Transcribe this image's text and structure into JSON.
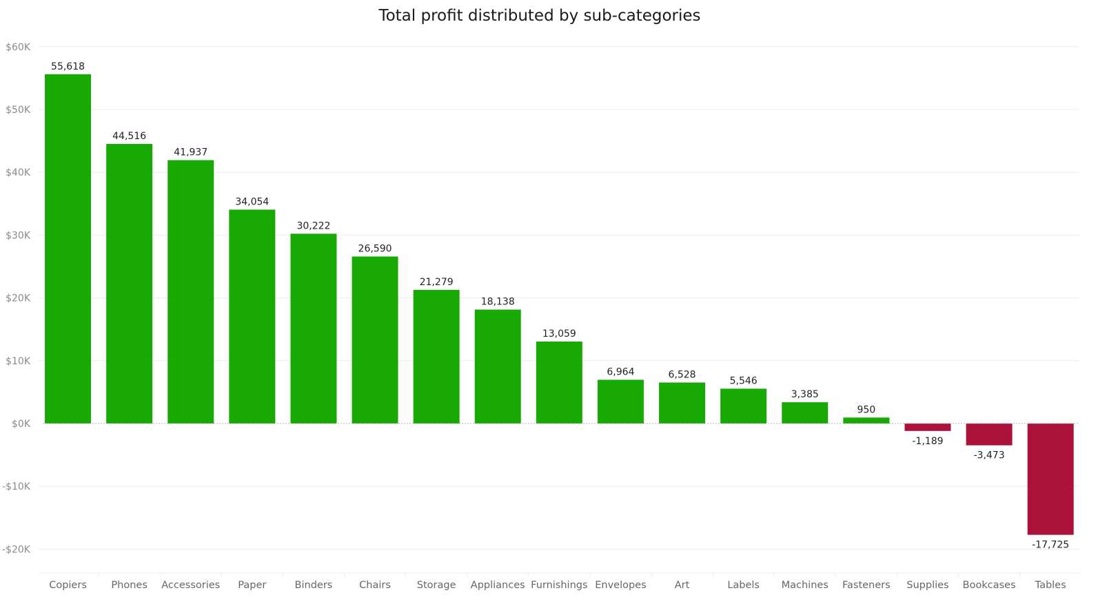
{
  "colors": {
    "positive": "#18a905",
    "negative": "#ab1239",
    "gridline": "#ececec",
    "zeroline": "#b0b0b0",
    "axis_text": "#8a8a8a"
  },
  "chart_data": {
    "type": "bar",
    "title": "Total profit distributed by sub-categories",
    "xlabel": "",
    "ylabel": "",
    "categories": [
      "Copiers",
      "Phones",
      "Accessories",
      "Paper",
      "Binders",
      "Chairs",
      "Storage",
      "Appliances",
      "Furnishings",
      "Envelopes",
      "Art",
      "Labels",
      "Machines",
      "Fasteners",
      "Supplies",
      "Bookcases",
      "Tables"
    ],
    "values": [
      55618,
      44516,
      41937,
      34054,
      30222,
      26590,
      21279,
      18138,
      13059,
      6964,
      6528,
      5546,
      3385,
      950,
      -1189,
      -3473,
      -17725
    ],
    "data_labels": [
      "55,618",
      "44,516",
      "41,937",
      "34,054",
      "30,222",
      "26,590",
      "21,279",
      "18,138",
      "13,059",
      "6,964",
      "6,528",
      "5,546",
      "3,385",
      "950",
      "-1,189",
      "-3,473",
      "-17,725"
    ],
    "yticks": [
      60000,
      50000,
      40000,
      30000,
      20000,
      10000,
      0,
      -10000,
      -20000
    ],
    "ytick_labels": [
      "$60K",
      "$50K",
      "$40K",
      "$30K",
      "$20K",
      "$10K",
      "$0K",
      "-$10K",
      "-$20K"
    ],
    "ylim": [
      -23800,
      62000
    ],
    "grid": true,
    "legend": "none"
  }
}
